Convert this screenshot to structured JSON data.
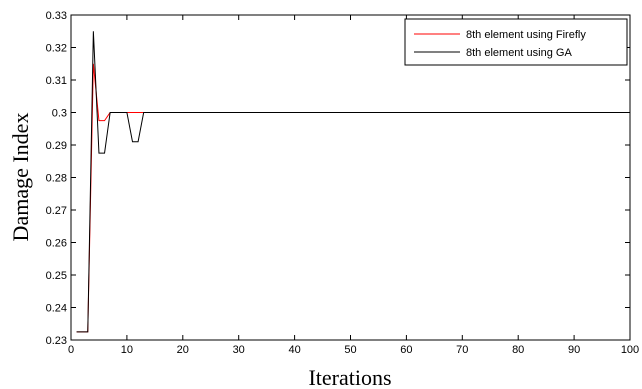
{
  "chart_data": {
    "type": "line",
    "title": "",
    "xlabel": "Iterations",
    "ylabel": "Damage Index",
    "xlim": [
      0,
      100
    ],
    "ylim": [
      0.23,
      0.33
    ],
    "x_ticks": [
      0,
      10,
      20,
      30,
      40,
      50,
      60,
      70,
      80,
      90,
      100
    ],
    "y_ticks": [
      0.23,
      0.24,
      0.25,
      0.26,
      0.27,
      0.28,
      0.29,
      0.3,
      0.31,
      0.32,
      0.33
    ],
    "y_tick_labels": [
      "0.23",
      "0.24",
      "0.25",
      "0.26",
      "0.27",
      "0.28",
      "0.29",
      "0.3",
      "0.31",
      "0.32",
      "0.33"
    ],
    "grid": false,
    "legend_position": "top-right",
    "series": [
      {
        "name": "8th element using Firefly",
        "color": "#ff0000",
        "x": [
          1,
          3,
          4,
          5,
          6,
          7,
          100
        ],
        "y": [
          0.2325,
          0.2325,
          0.315,
          0.2975,
          0.2975,
          0.3,
          0.3
        ]
      },
      {
        "name": "8th element using GA",
        "color": "#000000",
        "x": [
          1,
          3,
          4,
          5,
          6,
          7,
          10,
          11,
          12,
          13,
          100
        ],
        "y": [
          0.2325,
          0.2325,
          0.325,
          0.2875,
          0.2875,
          0.3,
          0.3,
          0.291,
          0.291,
          0.3,
          0.3
        ]
      }
    ]
  }
}
